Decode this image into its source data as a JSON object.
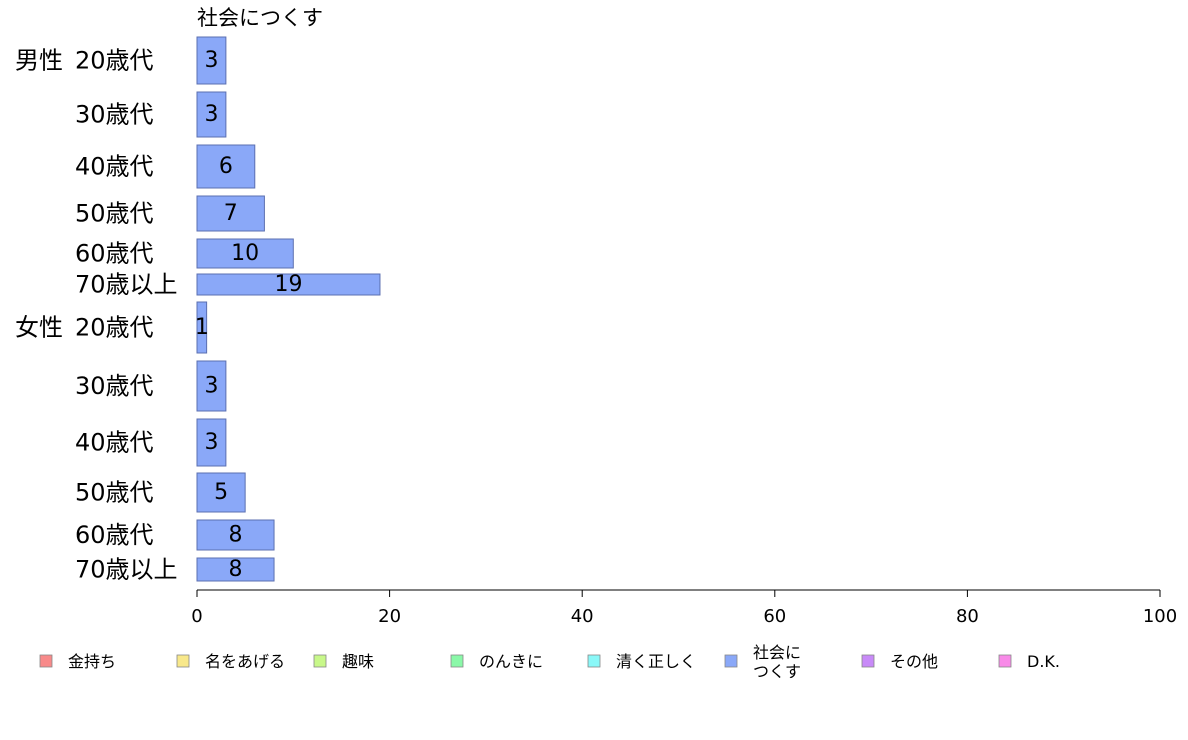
{
  "chart_data": {
    "type": "bar",
    "orientation": "horizontal",
    "title": "社会につくす",
    "groups": [
      {
        "label": "男性",
        "category_indices": [
          0,
          1,
          2,
          3,
          4,
          5
        ]
      },
      {
        "label": "女性",
        "category_indices": [
          6,
          7,
          8,
          9,
          10,
          11
        ]
      }
    ],
    "categories": [
      "20歳代",
      "30歳代",
      "40歳代",
      "50歳代",
      "60歳代",
      "70歳以上",
      "20歳代",
      "30歳代",
      "40歳代",
      "50歳代",
      "60歳代",
      "70歳以上"
    ],
    "series": [
      {
        "name": "社会につくす",
        "color": "#8aa8f8",
        "values": [
          3,
          3,
          6,
          7,
          10,
          19,
          1,
          3,
          3,
          5,
          8,
          8
        ],
        "data_labels": [
          "3",
          "3",
          "6",
          "7",
          "10",
          "19",
          "1",
          "3",
          "3",
          "5",
          "8",
          "8"
        ]
      }
    ],
    "xlim": [
      0,
      100
    ],
    "xticks": [
      "0",
      "20",
      "40",
      "60",
      "80",
      "100"
    ],
    "grid": false,
    "legend_position": "bottom",
    "legend": [
      {
        "label": "金持ち",
        "color": "#f88a8a"
      },
      {
        "label": "名をあげる",
        "color": "#f8e88a"
      },
      {
        "label": "趣味",
        "color": "#c8f88a"
      },
      {
        "label": "のんきに",
        "color": "#8af8a8"
      },
      {
        "label": "清く正しく",
        "color": "#8af8f8"
      },
      {
        "label": "社会に\nつくす",
        "color": "#8aa8f8"
      },
      {
        "label": "その他",
        "color": "#c88af8"
      },
      {
        "label": "D.K.",
        "color": "#f88ae8"
      }
    ]
  }
}
